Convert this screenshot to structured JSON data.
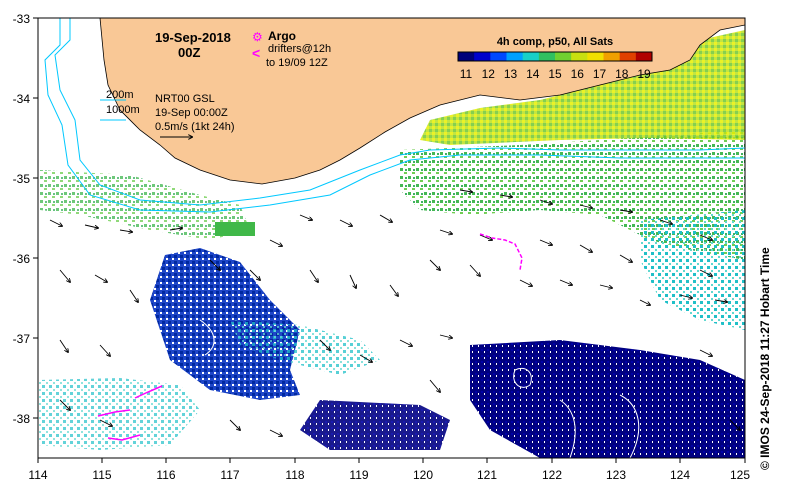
{
  "map": {
    "date_title": "19-Sep-2018",
    "time_title": "00Z",
    "legend_argo": "Argo",
    "legend_drifters_line1": "drifters@12h",
    "legend_drifters_line2": "to 19/09 12Z",
    "legend_argo_symbol": "⚙",
    "legend_drifter_symbol": "<",
    "depth_200": "200m",
    "depth_1000": "1000m",
    "nrt_line1": "NRT00 GSL",
    "nrt_line2": "19-Sep 00:00Z",
    "nrt_line3": "0.5m/s (1kt 24h)",
    "colorbar_title": "4h comp, p50, All Sats",
    "colorbar_ticks": [
      "11",
      "12",
      "13",
      "14",
      "15",
      "16",
      "17",
      "18",
      "19"
    ],
    "colorbar_colors": [
      "#00007a",
      "#0000cc",
      "#0048ff",
      "#00a0ff",
      "#18d0c8",
      "#30c060",
      "#70d030",
      "#c8e010",
      "#f0e000",
      "#f0a000",
      "#e04000",
      "#b00000"
    ],
    "lon_labels": [
      "114",
      "115",
      "116",
      "117",
      "118",
      "119",
      "120",
      "121",
      "122",
      "123",
      "124",
      "125"
    ],
    "lat_labels": [
      "-33",
      "-34",
      "-35",
      "-36",
      "-37",
      "-38"
    ],
    "lon_range": [
      114,
      125
    ],
    "lat_range": [
      -38.5,
      -33
    ],
    "credit": "© IMOS 24-Sep-2018 11:27 Hobart Time",
    "colors": {
      "land": "#f9c896",
      "bathy": "#00c8ff",
      "cold": "#000080",
      "mid_blue": "#1e46c8",
      "teal": "#20c0c8",
      "green": "#30b040",
      "light_green": "#90d838",
      "yellow": "#d8e800",
      "orange": "#f09010",
      "magenta": "#ff00ff"
    }
  }
}
